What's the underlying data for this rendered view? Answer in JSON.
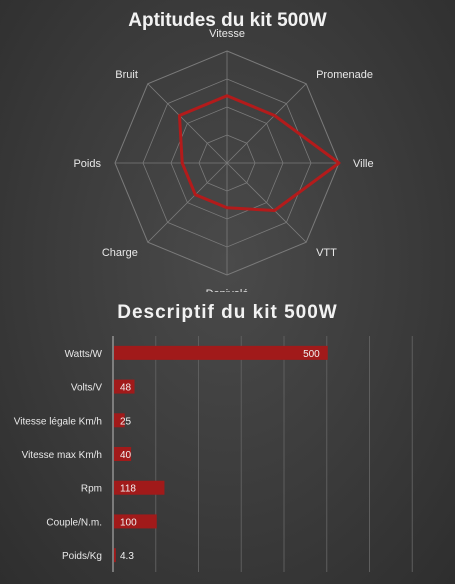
{
  "chart_data": [
    {
      "type": "radar",
      "title": "Aptitudes du kit 500W",
      "categories": [
        "Vitesse",
        "Promenade",
        "Ville",
        "VTT",
        "Denivelé",
        "Charge",
        "Poids",
        "Bruit"
      ],
      "values": [
        3,
        3,
        5,
        3,
        2,
        2,
        2,
        3
      ],
      "rmax": 5,
      "rings": 4,
      "series_color": "#b31b1b",
      "grid_color": "#7a7a7a"
    },
    {
      "type": "bar",
      "orientation": "horizontal",
      "title": "Descriptif  du kit 500W",
      "categories": [
        "Watts/W",
        "Volts/V",
        "Vitesse légale Km/h",
        "Vitesse max Km/h",
        "Rpm",
        "Couple/N.m.",
        "Poids/Kg"
      ],
      "values": [
        500,
        48,
        25,
        40,
        118,
        100,
        4.3
      ],
      "data_labels": [
        "500",
        "48",
        "25",
        "40",
        "118",
        "100",
        "4.3"
      ],
      "xlim": [
        0,
        800
      ],
      "grid": true,
      "bar_color": "#a11a1a"
    }
  ]
}
